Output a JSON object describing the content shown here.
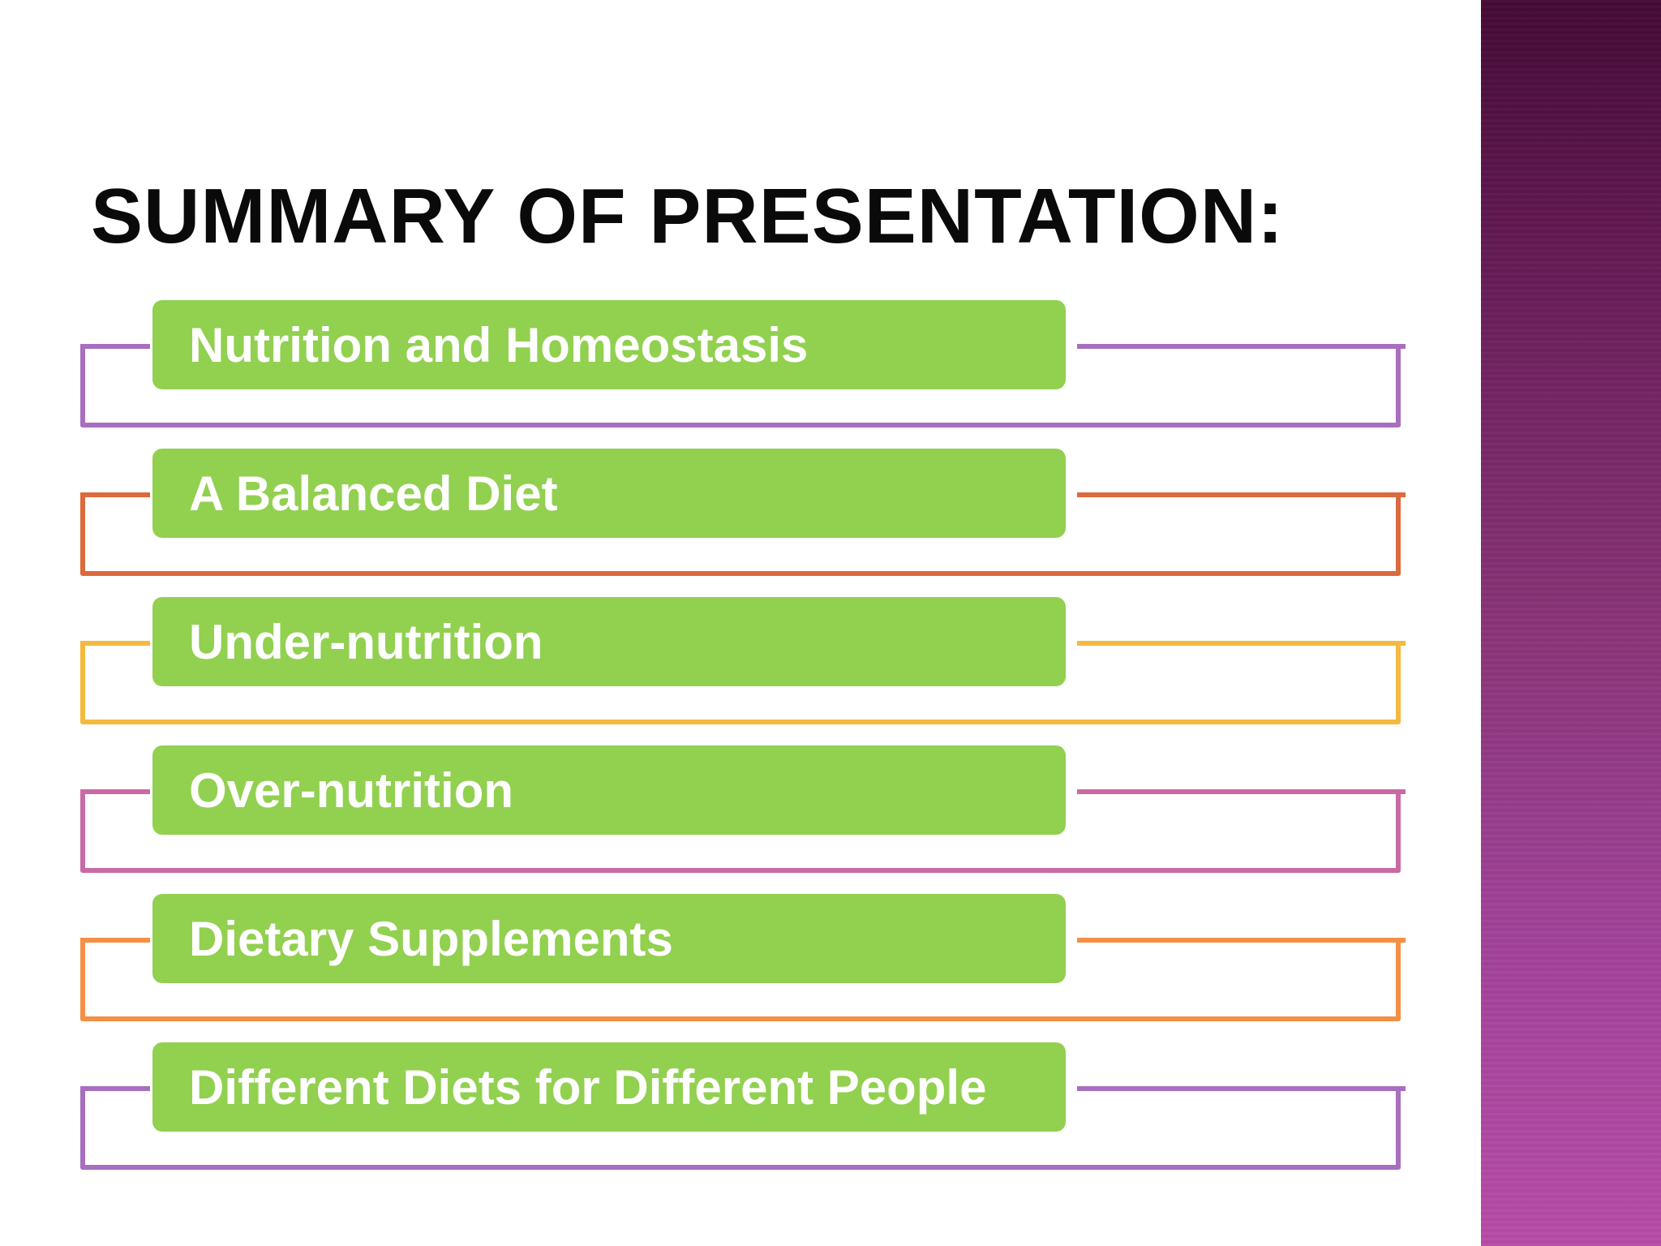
{
  "slide": {
    "title": "SUMMARY OF PRESENTATION:",
    "items": [
      {
        "label": "Nutrition and Homeostasis",
        "bracket_color": "#a86ebf"
      },
      {
        "label": "A Balanced Diet",
        "bracket_color": "#dc6a3d"
      },
      {
        "label": "Under-nutrition",
        "bracket_color": "#f4b93f"
      },
      {
        "label": "Over-nutrition",
        "bracket_color": "#c86aa6"
      },
      {
        "label": "Dietary Supplements",
        "bracket_color": "#f58f46"
      },
      {
        "label": "Different Diets for Different People",
        "bracket_color": "#a86ebf"
      }
    ]
  },
  "colors": {
    "item_box": "#92d050",
    "title_text": "#0a0a0a",
    "side_band_top": "#450a36",
    "side_band_bottom": "#b84ca8"
  }
}
